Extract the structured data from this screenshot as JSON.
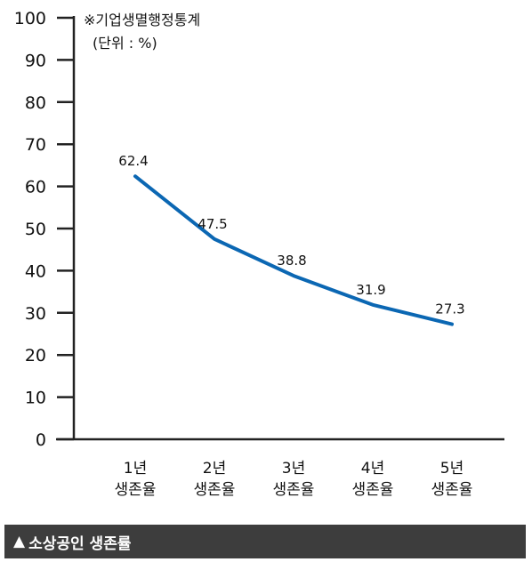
{
  "caption": {
    "marker": "▲",
    "text": "소상공인 생존률"
  },
  "note": {
    "source": "※기업생멸행정통계",
    "unit": "(단위 : %)"
  },
  "colors": {
    "line": "#0b67b3",
    "axis": "#222222",
    "caption_bg": "#3d3d3d"
  },
  "chart_data": {
    "type": "line",
    "categories": [
      [
        "1년",
        "생존율"
      ],
      [
        "2년",
        "생존율"
      ],
      [
        "3년",
        "생존율"
      ],
      [
        "4년",
        "생존율"
      ],
      [
        "5년",
        "생존율"
      ]
    ],
    "values": [
      62.4,
      47.5,
      38.8,
      31.9,
      27.3
    ],
    "data_labels": [
      "62.4",
      "47.5",
      "38.8",
      "31.9",
      "27.3"
    ],
    "ylim": [
      0,
      100
    ],
    "yticks": [
      0,
      10,
      20,
      30,
      40,
      50,
      60,
      70,
      80,
      90,
      100
    ],
    "grid": false
  }
}
